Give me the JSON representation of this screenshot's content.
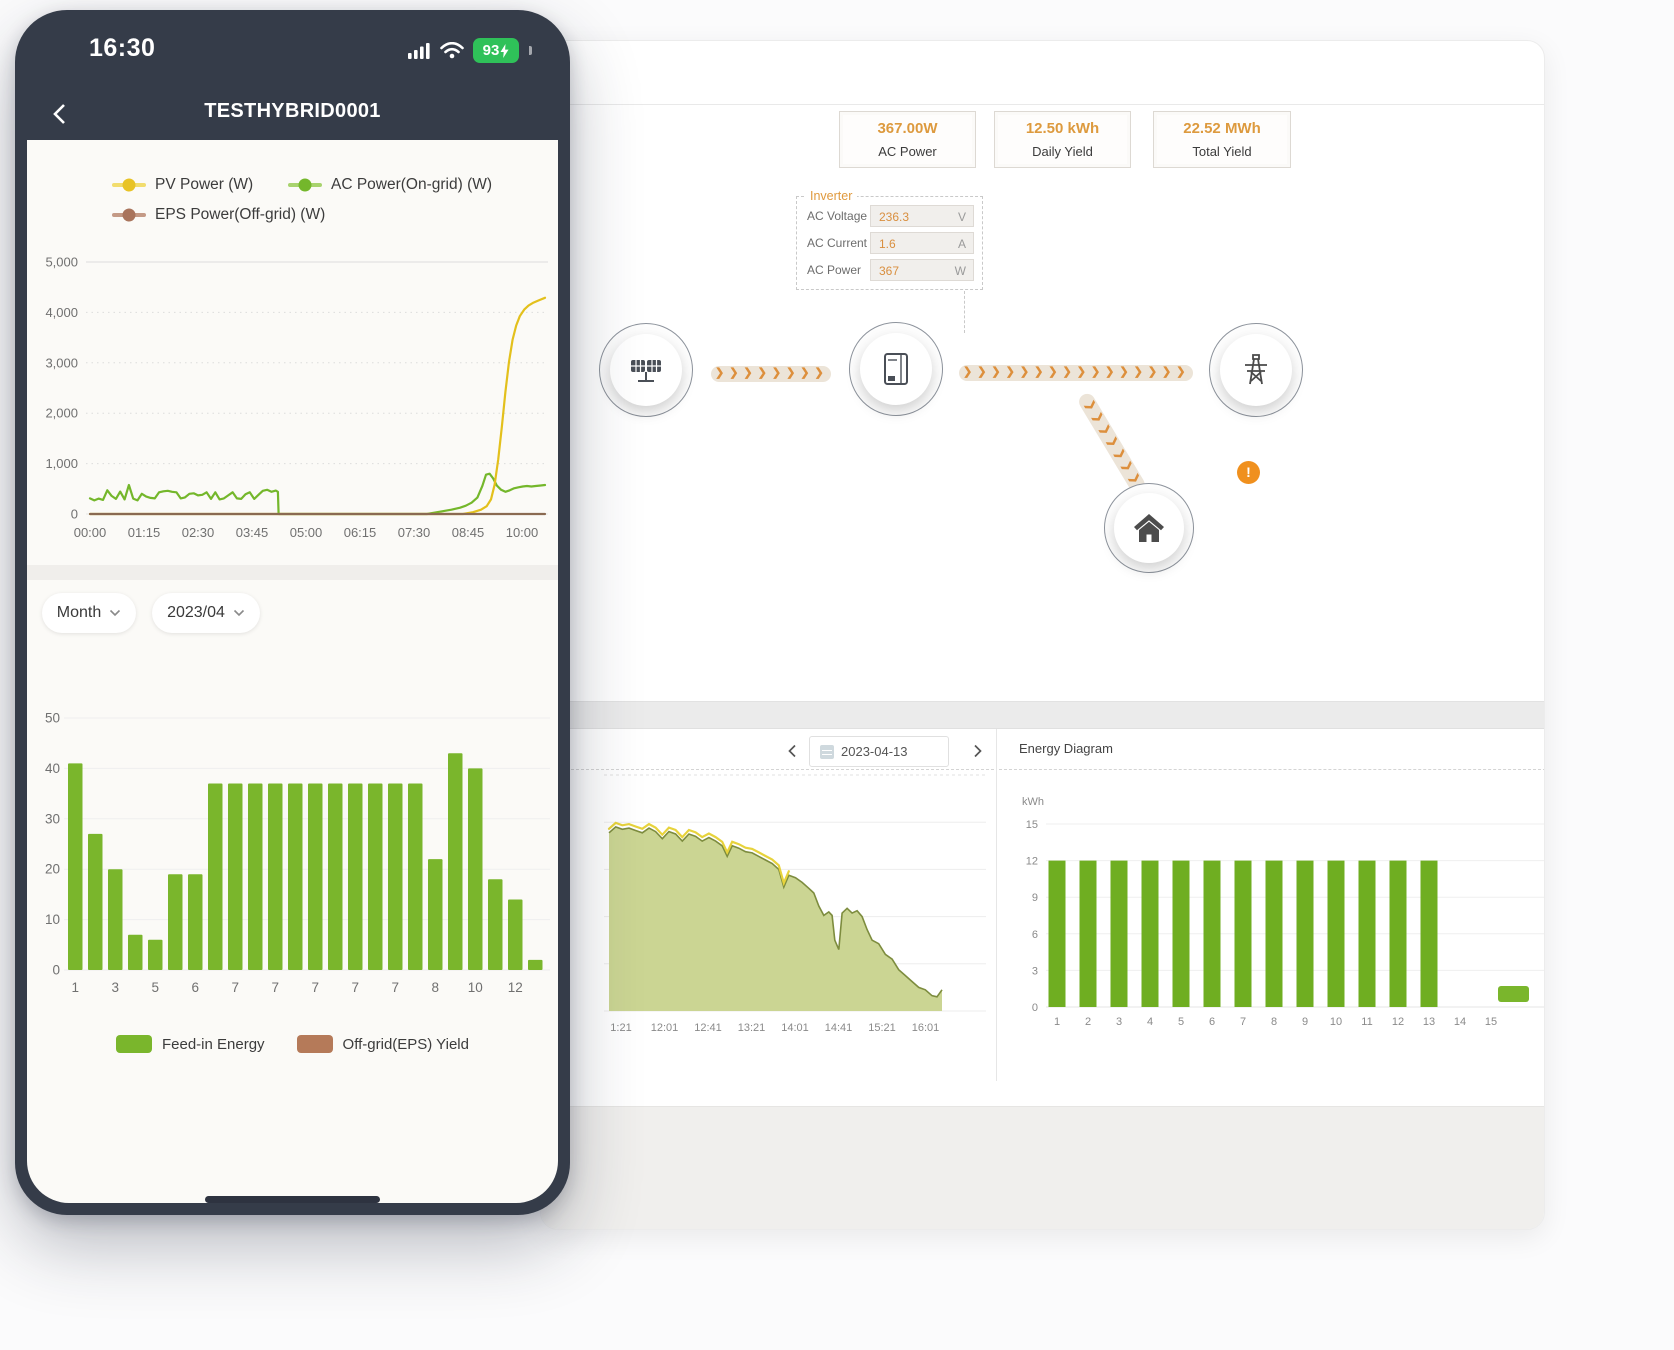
{
  "phone": {
    "status": {
      "time": "16:30",
      "battery_percent": "93"
    },
    "nav": {
      "title": "TESTHYBRID0001"
    },
    "power_chart": {
      "type": "line",
      "legend": [
        {
          "label": "PV Power (W)",
          "color": "#e8c325",
          "line": "#f2dd6e"
        },
        {
          "label": "AC Power(On-grid) (W)",
          "color": "#74b72b",
          "line": "#a8d36e"
        },
        {
          "label": "EPS Power(Off-grid) (W)",
          "color": "#a9745c",
          "line": "#c49a86"
        }
      ],
      "y_ticks": [
        "5,000",
        "4,000",
        "3,000",
        "2,000",
        "1,000",
        "0"
      ],
      "ylim": [
        0,
        5000
      ],
      "x_ticks": [
        "00:00",
        "01:15",
        "02:30",
        "03:45",
        "05:00",
        "06:15",
        "07:30",
        "08:45",
        "10:00"
      ],
      "series": [
        {
          "name": "AC Power(On-grid) (W)",
          "color": "#74b72b",
          "points": [
            [
              0,
              310
            ],
            [
              6,
              270
            ],
            [
              12,
              305
            ],
            [
              18,
              280
            ],
            [
              24,
              470
            ],
            [
              30,
              360
            ],
            [
              36,
              300
            ],
            [
              42,
              445
            ],
            [
              48,
              290
            ],
            [
              54,
              575
            ],
            [
              60,
              305
            ],
            [
              66,
              270
            ],
            [
              72,
              400
            ],
            [
              78,
              345
            ],
            [
              84,
              320
            ],
            [
              90,
              310
            ],
            [
              96,
              430
            ],
            [
              102,
              450
            ],
            [
              108,
              460
            ],
            [
              114,
              440
            ],
            [
              120,
              430
            ],
            [
              126,
              310
            ],
            [
              132,
              330
            ],
            [
              138,
              400
            ],
            [
              144,
              410
            ],
            [
              150,
              370
            ],
            [
              156,
              380
            ],
            [
              162,
              430
            ],
            [
              168,
              300
            ],
            [
              174,
              430
            ],
            [
              180,
              290
            ],
            [
              186,
              310
            ],
            [
              192,
              370
            ],
            [
              198,
              430
            ],
            [
              204,
              310
            ],
            [
              210,
              300
            ],
            [
              216,
              390
            ],
            [
              222,
              430
            ],
            [
              228,
              300
            ],
            [
              234,
              380
            ],
            [
              240,
              460
            ],
            [
              246,
              480
            ],
            [
              252,
              440
            ],
            [
              258,
              465
            ],
            [
              261,
              440
            ],
            [
              262,
              0
            ],
            [
              468,
              0
            ],
            [
              478,
              25
            ],
            [
              490,
              55
            ],
            [
              502,
              85
            ],
            [
              514,
              125
            ],
            [
              522,
              165
            ],
            [
              530,
              225
            ],
            [
              538,
              325
            ],
            [
              545,
              560
            ],
            [
              550,
              780
            ],
            [
              555,
              800
            ],
            [
              560,
              705
            ],
            [
              565,
              565
            ],
            [
              571,
              480
            ],
            [
              577,
              440
            ],
            [
              583,
              470
            ],
            [
              589,
              510
            ],
            [
              595,
              530
            ],
            [
              601,
              545
            ],
            [
              607,
              555
            ],
            [
              613,
              545
            ],
            [
              619,
              555
            ],
            [
              626,
              565
            ],
            [
              632,
              575
            ]
          ]
        },
        {
          "name": "PV Power (W)",
          "color": "#e3c01c",
          "points": [
            [
              0,
              0
            ],
            [
              518,
              0
            ],
            [
              532,
              35
            ],
            [
              543,
              85
            ],
            [
              551,
              155
            ],
            [
              557,
              290
            ],
            [
              562,
              580
            ],
            [
              567,
              1080
            ],
            [
              572,
              1720
            ],
            [
              577,
              2420
            ],
            [
              582,
              3020
            ],
            [
              587,
              3460
            ],
            [
              592,
              3740
            ],
            [
              597,
              3925
            ],
            [
              603,
              4055
            ],
            [
              609,
              4135
            ],
            [
              616,
              4195
            ],
            [
              624,
              4245
            ],
            [
              632,
              4290
            ]
          ]
        },
        {
          "name": "EPS Power(Off-grid) (W)",
          "color": "#8a6a52",
          "points": [
            [
              0,
              0
            ],
            [
              632,
              0
            ]
          ]
        }
      ]
    },
    "filters": {
      "period": "Month",
      "date": "2023/04"
    },
    "month_chart": {
      "type": "bar",
      "y_ticks": [
        "50",
        "40",
        "30",
        "20",
        "10",
        "0"
      ],
      "ylim": [
        0,
        50
      ],
      "bar_color": "#7ab62c",
      "values": [
        41,
        27,
        20,
        7,
        6,
        19,
        19,
        37,
        37,
        37,
        37,
        37,
        37,
        37,
        37,
        37,
        37,
        37,
        22,
        43,
        40,
        18,
        14,
        2
      ],
      "x_labels": [
        "1",
        "3",
        "5",
        "6",
        "7",
        "7",
        "7",
        "7",
        "7",
        "8",
        "10",
        "12"
      ],
      "legend": [
        {
          "label": "Feed-in Energy",
          "color": "#7ab62c"
        },
        {
          "label": "Off-grid(EPS) Yield",
          "color": "#b57a59"
        }
      ]
    }
  },
  "dashboard": {
    "stats": [
      {
        "value": "367.00W",
        "label": "AC Power"
      },
      {
        "value": "12.50 kWh",
        "label": "Daily Yield"
      },
      {
        "value": "22.52 MWh",
        "label": "Total Yield"
      }
    ],
    "inverter_panel": {
      "title": "Inverter",
      "rows": [
        {
          "label": "AC Voltage",
          "value": "236.3",
          "unit": "V"
        },
        {
          "label": "AC Current",
          "value": "1.6",
          "unit": "A"
        },
        {
          "label": "AC Power",
          "value": "367",
          "unit": "W"
        }
      ]
    },
    "flow": {
      "alert": "!"
    },
    "day_panel": {
      "date": "2023-04-13",
      "chart": {
        "type": "area",
        "fill": "#cbd593",
        "edge": "#7d8c3e",
        "accent": "#e7d33c",
        "x_ticks": [
          "1:21",
          "12:01",
          "12:41",
          "13:21",
          "14:01",
          "14:41",
          "15:21",
          "16:01"
        ],
        "points": [
          [
            0,
            0.755
          ],
          [
            0.02,
            0.78
          ],
          [
            0.04,
            0.77
          ],
          [
            0.06,
            0.775
          ],
          [
            0.08,
            0.765
          ],
          [
            0.1,
            0.755
          ],
          [
            0.12,
            0.775
          ],
          [
            0.14,
            0.76
          ],
          [
            0.16,
            0.73
          ],
          [
            0.18,
            0.76
          ],
          [
            0.2,
            0.75
          ],
          [
            0.22,
            0.72
          ],
          [
            0.24,
            0.75
          ],
          [
            0.26,
            0.74
          ],
          [
            0.28,
            0.72
          ],
          [
            0.3,
            0.735
          ],
          [
            0.32,
            0.72
          ],
          [
            0.34,
            0.7
          ],
          [
            0.355,
            0.655
          ],
          [
            0.37,
            0.7
          ],
          [
            0.39,
            0.69
          ],
          [
            0.41,
            0.675
          ],
          [
            0.43,
            0.67
          ],
          [
            0.45,
            0.655
          ],
          [
            0.47,
            0.64
          ],
          [
            0.49,
            0.625
          ],
          [
            0.51,
            0.6
          ],
          [
            0.525,
            0.525
          ],
          [
            0.54,
            0.575
          ],
          [
            0.56,
            0.565
          ],
          [
            0.58,
            0.545
          ],
          [
            0.6,
            0.52
          ],
          [
            0.615,
            0.5
          ],
          [
            0.63,
            0.445
          ],
          [
            0.645,
            0.405
          ],
          [
            0.66,
            0.42
          ],
          [
            0.67,
            0.405
          ],
          [
            0.678,
            0.3
          ],
          [
            0.69,
            0.26
          ],
          [
            0.7,
            0.415
          ],
          [
            0.715,
            0.435
          ],
          [
            0.73,
            0.415
          ],
          [
            0.745,
            0.425
          ],
          [
            0.76,
            0.4
          ],
          [
            0.775,
            0.345
          ],
          [
            0.79,
            0.3
          ],
          [
            0.81,
            0.285
          ],
          [
            0.83,
            0.24
          ],
          [
            0.85,
            0.22
          ],
          [
            0.87,
            0.175
          ],
          [
            0.89,
            0.15
          ],
          [
            0.91,
            0.125
          ],
          [
            0.93,
            0.1
          ],
          [
            0.95,
            0.09
          ],
          [
            0.97,
            0.065
          ],
          [
            0.985,
            0.06
          ],
          [
            1.0,
            0.09
          ]
        ]
      }
    },
    "energy_panel": {
      "title": "Energy Diagram",
      "unit": "kWh",
      "chart": {
        "type": "bar",
        "y_ticks": [
          "15",
          "12",
          "9",
          "6",
          "3",
          "0"
        ],
        "ylim": [
          0,
          15
        ],
        "bar_color": "#6fae21",
        "values": [
          12,
          12,
          12,
          12,
          12,
          12,
          12,
          12,
          12,
          12,
          12,
          12,
          12
        ],
        "x_labels": [
          "1",
          "2",
          "3",
          "4",
          "5",
          "6",
          "7",
          "8",
          "9",
          "10",
          "11",
          "12",
          "13",
          "14",
          "15"
        ]
      }
    }
  }
}
